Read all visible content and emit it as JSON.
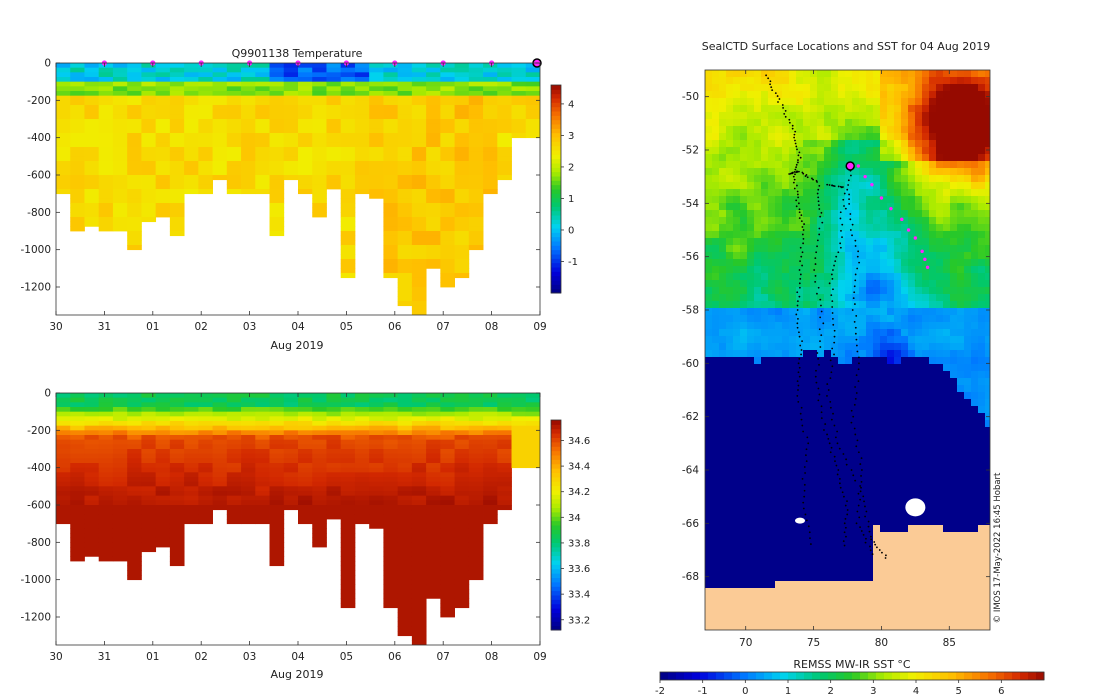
{
  "chart_data": [
    {
      "type": "heatmap",
      "title": "Q9901138  Temperature",
      "xlabel": "Aug 2019",
      "ylabel": "",
      "x_ticks": [
        "30",
        "31",
        "01",
        "02",
        "03",
        "04",
        "05",
        "06",
        "07",
        "08",
        "09"
      ],
      "y_ticks": [
        0,
        -200,
        -400,
        -600,
        -800,
        -1000,
        -1200
      ],
      "ylim": [
        -1350,
        0
      ],
      "colorbar_ticks": [
        -1,
        0,
        1,
        2,
        3,
        4
      ],
      "colorbar_range": [
        -2,
        4.6
      ],
      "surface_markers": [
        "31",
        "01",
        "02",
        "03",
        "04",
        "05",
        "06",
        "07",
        "08"
      ],
      "highlight_marker": "09",
      "profile_depths": [
        700,
        900,
        860,
        880,
        900,
        980,
        840,
        820,
        920,
        700,
        700,
        620,
        680,
        690,
        700,
        920,
        620,
        700,
        820,
        660,
        1130,
        700,
        720,
        1140,
        1280,
        1350,
        1080,
        1200,
        1150,
        1000,
        700,
        620,
        400,
        400
      ]
    },
    {
      "type": "heatmap",
      "title": "",
      "xlabel": "Aug 2019",
      "ylabel": "",
      "x_ticks": [
        "30",
        "31",
        "01",
        "02",
        "03",
        "04",
        "05",
        "06",
        "07",
        "08",
        "09"
      ],
      "y_ticks": [
        0,
        -200,
        -400,
        -600,
        -800,
        -1000,
        -1200
      ],
      "ylim": [
        -1350,
        0
      ],
      "colorbar_ticks": [
        33.2,
        33.4,
        33.6,
        33.8,
        34,
        34.2,
        34.4,
        34.6
      ],
      "colorbar_range": [
        33.12,
        34.76
      ]
    },
    {
      "type": "heatmap",
      "title": "SealCTD Surface Locations and SST for 04 Aug 2019",
      "xlabel": "",
      "ylabel": "",
      "x_ticks": [
        70,
        75,
        80,
        85
      ],
      "y_ticks": [
        -50,
        -52,
        -54,
        -56,
        -58,
        -60,
        -62,
        -64,
        -66,
        -68
      ],
      "xlim": [
        67,
        88
      ],
      "ylim": [
        -70,
        -49
      ],
      "colorbar_label": "REMSS MW-IR SST °C",
      "colorbar_ticks": [
        -2,
        -1,
        0,
        1,
        2,
        3,
        4,
        5,
        6
      ],
      "colorbar_range": [
        -2,
        7
      ],
      "highlight_point": [
        77.7,
        -52.6
      ],
      "recent_track": [
        [
          78.3,
          -52.6
        ],
        [
          78.8,
          -53.0
        ],
        [
          79.3,
          -53.3
        ],
        [
          80.0,
          -53.8
        ],
        [
          80.7,
          -54.2
        ],
        [
          81.5,
          -54.6
        ],
        [
          82.0,
          -55.0
        ],
        [
          82.5,
          -55.3
        ],
        [
          83.0,
          -55.8
        ],
        [
          83.2,
          -56.1
        ],
        [
          83.4,
          -56.4
        ]
      ],
      "credit": "© IMOS 17-May-2022 16:45 Hobart"
    }
  ]
}
